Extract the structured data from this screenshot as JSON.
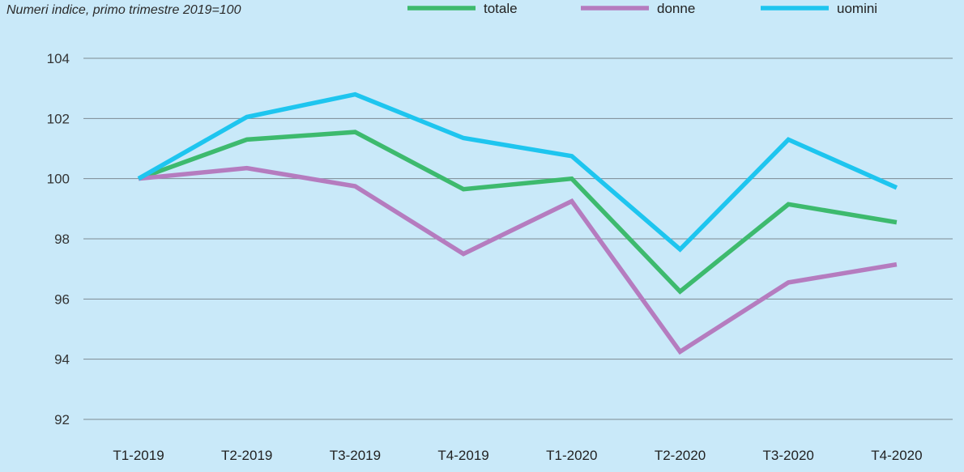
{
  "chart_data": {
    "type": "line",
    "subtitle": "Numeri indice, primo trimestre 2019=100",
    "categories": [
      "T1-2019",
      "T2-2019",
      "T3-2019",
      "T4-2019",
      "T1-2020",
      "T2-2020",
      "T3-2020",
      "T4-2020"
    ],
    "series": [
      {
        "name": "totale",
        "color": "#3dba6e",
        "values": [
          100,
          101.3,
          101.55,
          99.65,
          100,
          96.25,
          99.15,
          98.55
        ]
      },
      {
        "name": "donne",
        "color": "#b57cbf",
        "values": [
          100,
          100.35,
          99.75,
          97.5,
          99.25,
          94.25,
          96.55,
          97.15
        ]
      },
      {
        "name": "uomini",
        "color": "#1ec5ef",
        "values": [
          100,
          102.05,
          102.8,
          101.35,
          100.75,
          97.65,
          101.3,
          99.7
        ]
      }
    ],
    "ylim": [
      92,
      104
    ],
    "yticks": [
      92,
      94,
      96,
      98,
      100,
      102,
      104
    ],
    "grid": true,
    "legend_position": "top"
  }
}
